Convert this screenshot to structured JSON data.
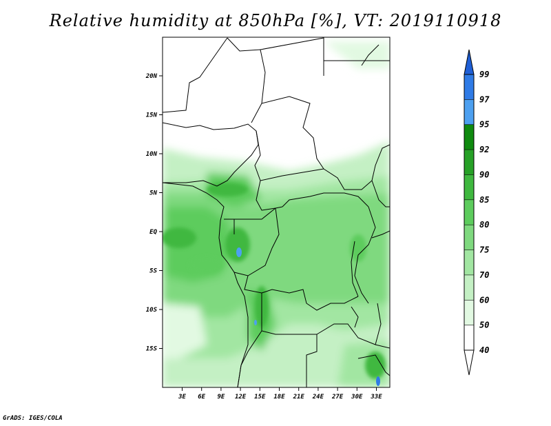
{
  "title": "Relative humidity at 850hPa [%], VT: 2019110918",
  "credit": "GrADS: IGES/COLA",
  "lat_labels": [
    "20N",
    "15N",
    "10N",
    "5N",
    "EQ",
    "5S",
    "10S",
    "15S"
  ],
  "lon_labels": [
    "3E",
    "6E",
    "9E",
    "12E",
    "15E",
    "18E",
    "21E",
    "24E",
    "27E",
    "30E",
    "33E"
  ],
  "colorbar": {
    "levels": [
      "99",
      "97",
      "95",
      "92",
      "90",
      "85",
      "80",
      "75",
      "70",
      "60",
      "50",
      "40"
    ],
    "colors": [
      "#1f5fd6",
      "#2f7be6",
      "#4da0f0",
      "#0f8a0f",
      "#27a127",
      "#3fb83f",
      "#5dcc5d",
      "#7fd97f",
      "#a2e6a2",
      "#c4f0c4",
      "#e2f9e2",
      "#ffffff"
    ]
  },
  "map": {
    "region": "Central Africa",
    "lon_range": [
      0,
      35
    ],
    "lat_range": [
      -20,
      25
    ],
    "field": "relative humidity 850hPa",
    "units": "%"
  }
}
